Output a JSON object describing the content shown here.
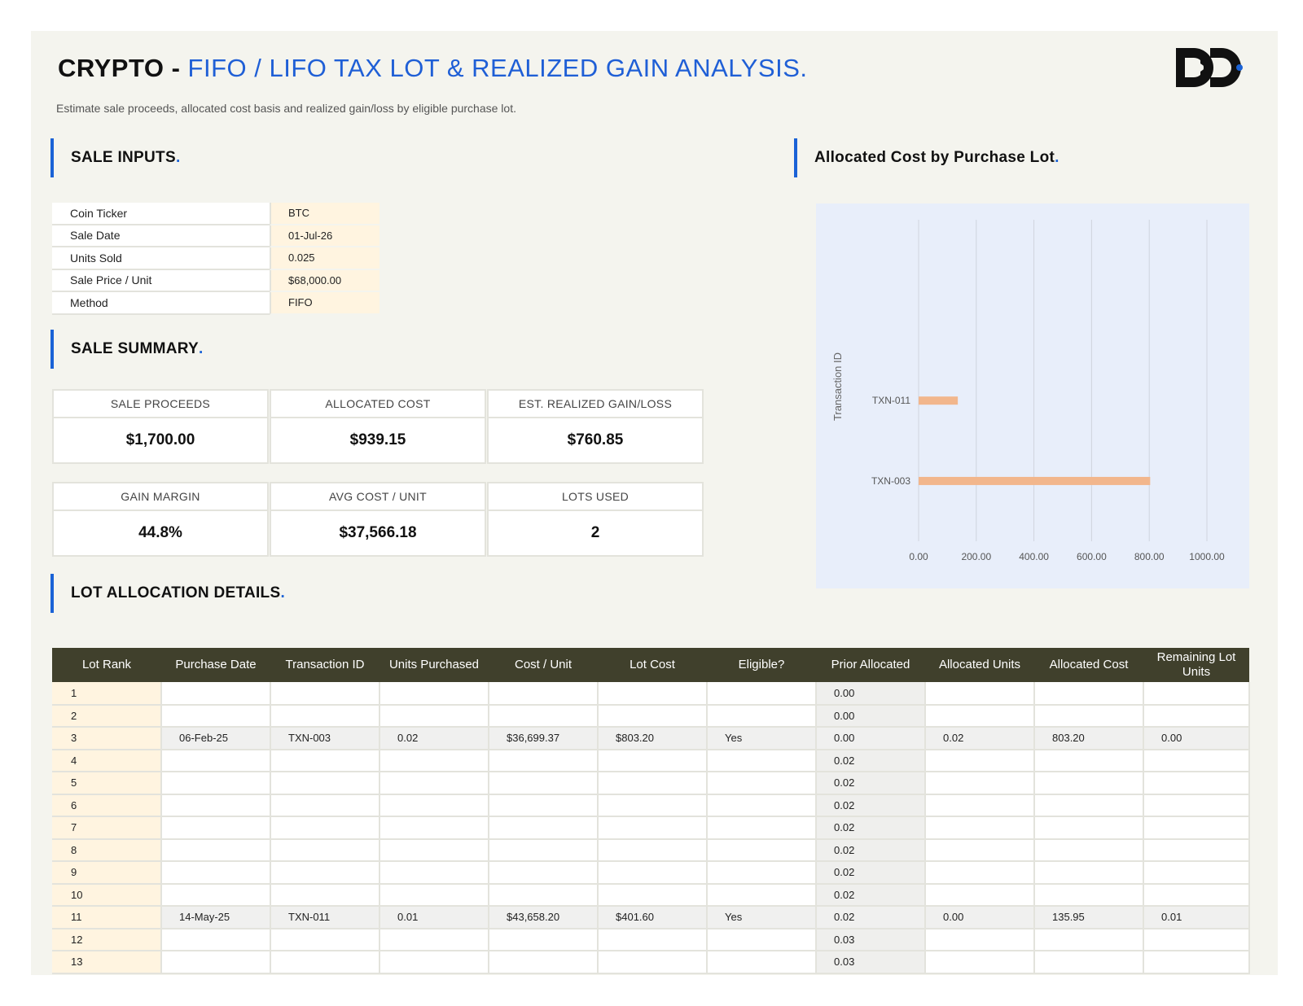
{
  "header": {
    "title_bold": "CRYPTO -",
    "title_blue": "FIFO / LIFO TAX LOT & REALIZED GAIN ANALYSIS.",
    "subtitle": "Estimate sale proceeds, allocated cost basis and realized gain/loss by eligible purchase lot."
  },
  "sections": {
    "sale_inputs": "SALE INPUTS",
    "sale_summary": "SALE SUMMARY",
    "lot_allocation": "LOT ALLOCATION DETAILS",
    "chart": "Allocated Cost by Purchase Lot",
    "dot": "."
  },
  "inputs": [
    {
      "label": "Coin Ticker",
      "value": "BTC"
    },
    {
      "label": "Sale Date",
      "value": "01-Jul-26"
    },
    {
      "label": "Units Sold",
      "value": "0.025"
    },
    {
      "label": "Sale Price / Unit",
      "value": "$68,000.00"
    },
    {
      "label": "Method",
      "value": "FIFO"
    }
  ],
  "kpis": [
    {
      "label": "SALE PROCEEDS",
      "value": "$1,700.00"
    },
    {
      "label": "ALLOCATED COST",
      "value": "$939.15"
    },
    {
      "label": "EST. REALIZED GAIN/LOSS",
      "value": "$760.85"
    },
    {
      "label": "GAIN MARGIN",
      "value": "44.8%"
    },
    {
      "label": "AVG COST / UNIT",
      "value": "$37,566.18"
    },
    {
      "label": "LOTS USED",
      "value": "2"
    }
  ],
  "chart_data": {
    "type": "bar",
    "orientation": "horizontal",
    "categories": [
      "TXN-011",
      "TXN-003"
    ],
    "values": [
      135.95,
      803.2
    ],
    "ylabel": "Transaction ID",
    "xlim": [
      0,
      1000
    ],
    "xticks": [
      "0.00",
      "200.00",
      "400.00",
      "600.00",
      "800.00",
      "1000.00"
    ],
    "grid": true,
    "bar_color": "#f2b68c"
  },
  "table": {
    "headers": [
      "Lot Rank",
      "Purchase Date",
      "Transaction ID",
      "Units Purchased",
      "Cost / Unit",
      "Lot Cost",
      "Eligible?",
      "Prior Allocated",
      "Allocated Units",
      "Allocated Cost",
      "Remaining Lot Units"
    ],
    "rows": [
      [
        "1",
        "",
        "",
        "",
        "",
        "",
        "",
        "0.00",
        "",
        "",
        ""
      ],
      [
        "2",
        "",
        "",
        "",
        "",
        "",
        "",
        "0.00",
        "",
        "",
        ""
      ],
      [
        "3",
        "06-Feb-25",
        "TXN-003",
        "0.02",
        "$36,699.37",
        "$803.20",
        "Yes",
        "0.00",
        "0.02",
        "803.20",
        "0.00"
      ],
      [
        "4",
        "",
        "",
        "",
        "",
        "",
        "",
        "0.02",
        "",
        "",
        ""
      ],
      [
        "5",
        "",
        "",
        "",
        "",
        "",
        "",
        "0.02",
        "",
        "",
        ""
      ],
      [
        "6",
        "",
        "",
        "",
        "",
        "",
        "",
        "0.02",
        "",
        "",
        ""
      ],
      [
        "7",
        "",
        "",
        "",
        "",
        "",
        "",
        "0.02",
        "",
        "",
        ""
      ],
      [
        "8",
        "",
        "",
        "",
        "",
        "",
        "",
        "0.02",
        "",
        "",
        ""
      ],
      [
        "9",
        "",
        "",
        "",
        "",
        "",
        "",
        "0.02",
        "",
        "",
        ""
      ],
      [
        "10",
        "",
        "",
        "",
        "",
        "",
        "",
        "0.02",
        "",
        "",
        ""
      ],
      [
        "11",
        "14-May-25",
        "TXN-011",
        "0.01",
        "$43,658.20",
        "$401.60",
        "Yes",
        "0.02",
        "0.00",
        "135.95",
        "0.01"
      ],
      [
        "12",
        "",
        "",
        "",
        "",
        "",
        "",
        "0.03",
        "",
        "",
        ""
      ],
      [
        "13",
        "",
        "",
        "",
        "",
        "",
        "",
        "0.03",
        "",
        "",
        ""
      ]
    ]
  },
  "colors": {
    "accent": "#1a62d6",
    "header_bg": "#40402c",
    "input_bg": "#fff4e0",
    "chart_bg": "#e8eefa"
  },
  "icons": {
    "logo": "brand-logo-icon"
  }
}
